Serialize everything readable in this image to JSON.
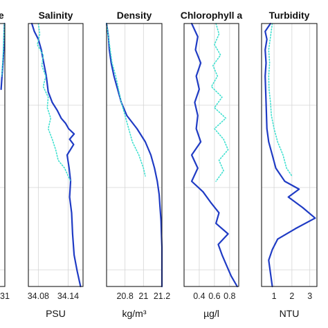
{
  "chart_data": [
    {
      "type": "line",
      "title": "",
      "title_partial": "re",
      "xlabel": "",
      "xtick_partial": "31",
      "grid": true,
      "series": [
        {
          "color": "#1f3bc4",
          "style": "solid",
          "y": [
            0,
            0.05,
            0.1,
            0.15,
            0.2,
            0.25
          ],
          "x": [
            0.98,
            0.96,
            0.94,
            0.9,
            0.85,
            0.8
          ]
        },
        {
          "color": "#40e0d0",
          "style": "dotted",
          "y": [
            0,
            0.05,
            0.1,
            0.15,
            0.2
          ],
          "x": [
            0.97,
            0.95,
            0.92,
            0.88,
            0.84
          ]
        }
      ]
    },
    {
      "type": "line",
      "title": "Salinity",
      "xlabel": "PSU",
      "xlim": [
        34.06,
        34.17
      ],
      "xticks": [
        34.08,
        34.14
      ],
      "xtick_labels": [
        "34.08",
        "34.14"
      ],
      "grid": true,
      "y_depth_fraction_range": [
        0,
        1
      ],
      "series": [
        {
          "color": "#1f3bc4",
          "style": "solid",
          "y": [
            0,
            0.03,
            0.06,
            0.1,
            0.14,
            0.2,
            0.26,
            0.3,
            0.33,
            0.36,
            0.38,
            0.4,
            0.42,
            0.44,
            0.46,
            0.5,
            0.55,
            0.6,
            0.66,
            0.72,
            0.8,
            0.88,
            0.94,
            1.0
          ],
          "x": [
            34.067,
            34.072,
            34.08,
            34.086,
            34.09,
            34.096,
            34.1,
            34.108,
            34.118,
            34.126,
            34.135,
            34.141,
            34.152,
            34.143,
            34.151,
            34.138,
            34.142,
            34.145,
            34.143,
            34.147,
            34.149,
            34.152,
            34.158,
            34.165
          ]
        },
        {
          "color": "#40e0d0",
          "style": "dotted",
          "y": [
            0,
            0.04,
            0.08,
            0.12,
            0.16,
            0.2,
            0.24,
            0.28,
            0.32,
            0.36,
            0.4,
            0.44,
            0.48,
            0.52,
            0.55,
            0.58,
            0.6
          ],
          "x": [
            34.08,
            34.083,
            34.078,
            34.09,
            34.087,
            34.095,
            34.09,
            34.1,
            34.098,
            34.105,
            34.1,
            34.108,
            34.115,
            34.12,
            34.133,
            34.14,
            34.145
          ]
        }
      ]
    },
    {
      "type": "line",
      "title": "Density",
      "xlabel": "kg/m³",
      "xlim": [
        20.6,
        21.2
      ],
      "xticks": [
        20.8,
        21,
        21.2
      ],
      "xtick_labels": [
        "20.8",
        "21",
        "21.2"
      ],
      "grid": true,
      "series": [
        {
          "color": "#1f3bc4",
          "style": "solid",
          "y": [
            0,
            0.05,
            0.1,
            0.15,
            0.2,
            0.25,
            0.3,
            0.35,
            0.4,
            0.45,
            0.5,
            0.55,
            0.6,
            0.65,
            0.7,
            0.75,
            0.8,
            0.85,
            0.9,
            0.95,
            1.0
          ],
          "x": [
            20.6,
            20.62,
            20.63,
            20.65,
            20.68,
            20.72,
            20.76,
            20.82,
            20.93,
            21.02,
            21.08,
            21.12,
            21.15,
            21.17,
            21.18,
            21.19,
            21.195,
            21.2,
            21.2,
            21.2,
            21.2
          ]
        },
        {
          "color": "#40e0d0",
          "style": "dotted",
          "y": [
            0,
            0.05,
            0.1,
            0.15,
            0.2,
            0.25,
            0.3,
            0.35,
            0.4,
            0.45,
            0.5,
            0.55,
            0.58
          ],
          "x": [
            20.6,
            20.62,
            20.64,
            20.66,
            20.7,
            20.73,
            20.76,
            20.8,
            20.84,
            20.88,
            20.95,
            21.0,
            21.02
          ]
        }
      ]
    },
    {
      "type": "line",
      "title": "Chlorophyll a",
      "xlabel": "µg/l",
      "xlim": [
        0.2,
        0.92
      ],
      "xticks": [
        0.4,
        0.6,
        0.8
      ],
      "xtick_labels": [
        "0.4",
        "0.6",
        "0.8"
      ],
      "tick_extra": "0.6",
      "grid": true,
      "series": [
        {
          "color": "#1f3bc4",
          "style": "solid",
          "y": [
            0,
            0.05,
            0.1,
            0.15,
            0.2,
            0.25,
            0.3,
            0.35,
            0.4,
            0.45,
            0.5,
            0.55,
            0.6,
            0.64,
            0.68,
            0.72,
            0.76,
            0.8,
            0.84,
            0.88,
            0.92,
            0.96,
            1.0
          ],
          "x": [
            0.3,
            0.38,
            0.35,
            0.42,
            0.36,
            0.4,
            0.34,
            0.38,
            0.36,
            0.42,
            0.3,
            0.38,
            0.3,
            0.45,
            0.55,
            0.66,
            0.62,
            0.78,
            0.65,
            0.7,
            0.76,
            0.82,
            0.9
          ]
        },
        {
          "color": "#40e0d0",
          "style": "dotted",
          "y": [
            0,
            0.04,
            0.08,
            0.12,
            0.16,
            0.2,
            0.24,
            0.28,
            0.32,
            0.36,
            0.4,
            0.44,
            0.48,
            0.52,
            0.56,
            0.6
          ],
          "x": [
            0.62,
            0.66,
            0.6,
            0.68,
            0.58,
            0.64,
            0.56,
            0.7,
            0.6,
            0.75,
            0.6,
            0.72,
            0.78,
            0.66,
            0.72,
            0.62
          ]
        }
      ]
    },
    {
      "type": "line",
      "title": "Turbidity",
      "xlabel": "NTU",
      "xlim": [
        0.3,
        3.4
      ],
      "xticks": [
        1,
        2,
        3
      ],
      "xtick_labels": [
        "1",
        "2",
        "3"
      ],
      "grid": true,
      "series": [
        {
          "color": "#1f3bc4",
          "style": "solid",
          "y": [
            0,
            0.03,
            0.06,
            0.1,
            0.15,
            0.2,
            0.3,
            0.4,
            0.45,
            0.5,
            0.55,
            0.6,
            0.63,
            0.66,
            0.7,
            0.74,
            0.78,
            0.82,
            0.86,
            0.9,
            0.95,
            1.0
          ],
          "x": [
            0.8,
            0.5,
            0.6,
            0.5,
            0.55,
            0.5,
            0.55,
            0.6,
            0.7,
            0.9,
            1.1,
            1.6,
            2.4,
            1.8,
            2.6,
            3.3,
            2.2,
            1.2,
            0.9,
            0.7,
            0.8,
            0.9
          ]
        },
        {
          "color": "#40e0d0",
          "style": "dotted",
          "y": [
            0,
            0.05,
            0.1,
            0.15,
            0.2,
            0.25,
            0.3,
            0.35,
            0.4,
            0.45,
            0.5,
            0.55,
            0.58
          ],
          "x": [
            0.9,
            0.8,
            0.7,
            0.75,
            0.7,
            0.72,
            0.8,
            0.85,
            1.0,
            1.2,
            1.5,
            1.7,
            2.0
          ]
        }
      ]
    }
  ]
}
